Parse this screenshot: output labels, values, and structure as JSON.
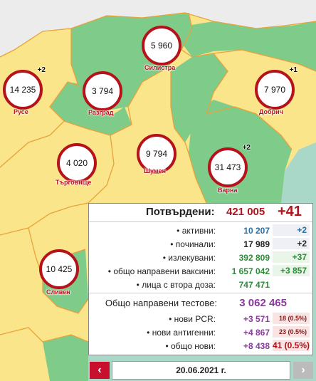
{
  "colors": {
    "map_background": "#a9d8c9",
    "low_region": "#7fcb8a",
    "high_region": "#fbe58a",
    "border": "#e8a23a",
    "accent_red": "#b5121b"
  },
  "regions": [
    {
      "name": "Русе",
      "count": "14 235",
      "delta": "+2"
    },
    {
      "name": "Силистра",
      "count": "5 960",
      "delta": ""
    },
    {
      "name": "Разград",
      "count": "3 794",
      "delta": ""
    },
    {
      "name": "Добрич",
      "count": "7 970",
      "delta": "+1"
    },
    {
      "name": "Търговище",
      "count": "4 020",
      "delta": ""
    },
    {
      "name": "Шумен",
      "count": "9 794",
      "delta": ""
    },
    {
      "name": "Варна",
      "count": "31 473",
      "delta": "+2"
    },
    {
      "name": "Сливен",
      "count": "10 425",
      "delta": ""
    }
  ],
  "panel": {
    "confirmed_label": "Потвърдени:",
    "confirmed_total": "421 005",
    "confirmed_delta": "+41",
    "rows": [
      {
        "label": "• активни:",
        "value": "10 207",
        "delta": "+2"
      },
      {
        "label": "• починали:",
        "value": "17 989",
        "delta": "+2"
      },
      {
        "label": "• излекувани:",
        "value": "392 809",
        "delta": "+37"
      },
      {
        "label": "• общо направени ваксини:",
        "value": "1 657 042",
        "delta": "+3 857"
      },
      {
        "label": "• лица с втора доза:",
        "value": "747 471",
        "delta": ""
      }
    ],
    "tests_label": "Общо направени тестове:",
    "tests_total": "3 062 465",
    "test_rows": [
      {
        "label": "• нови PCR:",
        "value": "+3 571",
        "delta": "18 (0.5%)"
      },
      {
        "label": "• нови антигенни:",
        "value": "+4 867",
        "delta": "23 (0.5%)"
      },
      {
        "label": "• общо нови:",
        "value": "+8 438",
        "delta": "41 (0.5%)"
      }
    ]
  },
  "date_nav": {
    "prev_icon": "‹",
    "date": "20.06.2021 г.",
    "next_icon": "›"
  }
}
